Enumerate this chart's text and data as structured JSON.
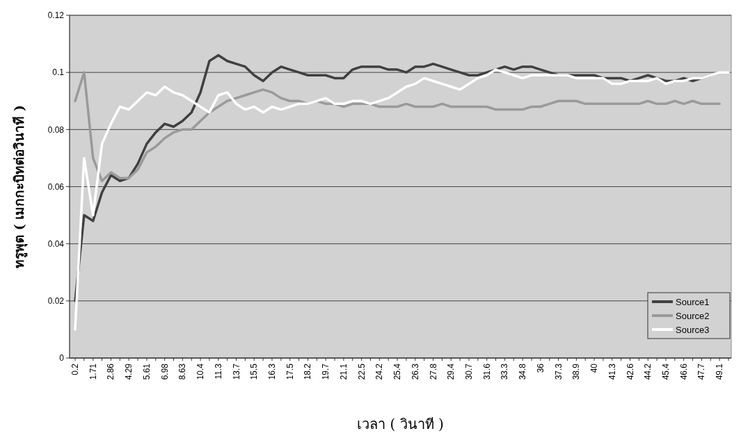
{
  "chart_data": {
    "type": "line",
    "xlabel": "เวลา ( วินาที )",
    "ylabel": "ทรูพุต ( เมกกะบิทต่อวินาที )",
    "categories": [
      "0.2",
      null,
      "1.71",
      null,
      "2.86",
      null,
      "4.29",
      null,
      "5.61",
      null,
      "6.98",
      null,
      "8.63",
      null,
      "10.4",
      null,
      "11.3",
      null,
      "13.7",
      null,
      "15.5",
      null,
      "16.3",
      null,
      "17.5",
      null,
      "18.2",
      null,
      "19.7",
      null,
      "21.1",
      null,
      "22.5",
      null,
      "24.2",
      null,
      "25.4",
      null,
      "26.3",
      null,
      "27.8",
      null,
      "29.4",
      null,
      "30.7",
      null,
      "31.6",
      null,
      "33.3",
      null,
      "34.8",
      null,
      "36",
      null,
      "37.3",
      null,
      "38.9",
      null,
      "40",
      null,
      "41.3",
      null,
      "42.6",
      null,
      "44.2",
      null,
      "45.4",
      null,
      "46.6",
      null,
      "47.7",
      null,
      "49.1",
      null
    ],
    "series": [
      {
        "name": "Source1",
        "color": "#404040",
        "values": [
          0.02,
          0.05,
          0.048,
          0.058,
          0.064,
          0.062,
          0.063,
          0.068,
          0.075,
          0.079,
          0.082,
          0.081,
          0.083,
          0.086,
          0.093,
          0.104,
          0.106,
          0.104,
          0.103,
          0.102,
          0.099,
          0.097,
          0.1,
          0.102,
          0.101,
          0.1,
          0.099,
          0.099,
          0.099,
          0.098,
          0.098,
          0.101,
          0.102,
          0.102,
          0.102,
          0.101,
          0.101,
          0.1,
          0.102,
          0.102,
          0.103,
          0.102,
          0.101,
          0.1,
          0.099,
          0.099,
          0.1,
          0.101,
          0.102,
          0.101,
          0.102,
          0.102,
          0.101,
          0.1,
          0.099,
          0.099,
          0.099,
          0.099,
          0.099,
          0.098,
          0.098,
          0.098,
          0.097,
          0.098,
          0.099,
          0.098,
          0.097,
          0.097,
          0.098,
          0.097,
          0.098,
          0.099,
          null,
          null
        ]
      },
      {
        "name": "Source2",
        "color": "#9a9a9a",
        "values": [
          0.09,
          0.1,
          0.07,
          0.062,
          0.065,
          0.063,
          0.063,
          0.066,
          0.072,
          0.074,
          0.077,
          0.079,
          0.08,
          0.08,
          0.083,
          0.086,
          0.088,
          0.09,
          0.091,
          0.092,
          0.093,
          0.094,
          0.093,
          0.091,
          0.09,
          0.09,
          0.089,
          0.09,
          0.089,
          0.089,
          0.088,
          0.089,
          0.089,
          0.089,
          0.088,
          0.088,
          0.088,
          0.089,
          0.088,
          0.088,
          0.088,
          0.089,
          0.088,
          0.088,
          0.088,
          0.088,
          0.088,
          0.087,
          0.087,
          0.087,
          0.087,
          0.088,
          0.088,
          0.089,
          0.09,
          0.09,
          0.09,
          0.089,
          0.089,
          0.089,
          0.089,
          0.089,
          0.089,
          0.089,
          0.09,
          0.089,
          0.089,
          0.09,
          0.089,
          0.09,
          0.089,
          0.089,
          0.089,
          null
        ]
      },
      {
        "name": "Source3",
        "color": "#ffffff",
        "values": [
          0.01,
          0.07,
          0.05,
          0.075,
          0.082,
          0.088,
          0.087,
          0.09,
          0.093,
          0.092,
          0.095,
          0.093,
          0.092,
          0.09,
          0.088,
          0.086,
          0.092,
          0.093,
          0.089,
          0.087,
          0.088,
          0.086,
          0.088,
          0.087,
          0.088,
          0.089,
          0.089,
          0.09,
          0.091,
          0.089,
          0.089,
          0.09,
          0.09,
          0.089,
          0.09,
          0.091,
          0.093,
          0.095,
          0.096,
          0.098,
          0.097,
          0.096,
          0.095,
          0.094,
          0.096,
          0.098,
          0.099,
          0.101,
          0.1,
          0.099,
          0.098,
          0.099,
          0.099,
          0.099,
          0.099,
          0.099,
          0.098,
          0.098,
          0.098,
          0.098,
          0.096,
          0.096,
          0.097,
          0.097,
          0.097,
          0.098,
          0.096,
          0.097,
          0.097,
          0.098,
          0.098,
          0.099,
          0.1,
          0.1
        ]
      }
    ],
    "ylim": [
      0,
      0.12
    ],
    "yticks": [
      0,
      0.02,
      0.04,
      0.06,
      0.08,
      0.1,
      0.12
    ],
    "grid": "y",
    "legend": "bottom right"
  }
}
